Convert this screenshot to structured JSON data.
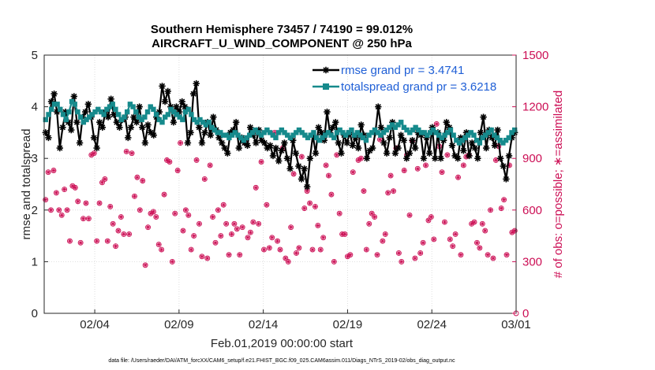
{
  "chart_data": {
    "type": "line",
    "title": "Southern Hemisphere 73457 / 74190 = 99.012%",
    "subtitle": "AIRCRAFT_U_WIND_COMPONENT @ 250 hPa",
    "xlabel": "Feb.01,2019 00:00:00 start",
    "ylabel": "rmse and totalspread",
    "y2label": "# of obs: o=possible; ∗=assimilated",
    "footer": "data file: /Users/raeder/DAI/ATM_forcXX/CAM6_setup/f.e21.FHIST_BGC.f09_025.CAM6assim.011/Diags_NTrS_2019-02/obs_diag_output.nc",
    "xlim": [
      1,
      29
    ],
    "ylim": [
      0,
      5
    ],
    "y2lim": [
      0,
      1500
    ],
    "x_ticks": [
      {
        "value": 4,
        "label": "02/04"
      },
      {
        "value": 9,
        "label": "02/09"
      },
      {
        "value": 14,
        "label": "02/14"
      },
      {
        "value": 19,
        "label": "02/19"
      },
      {
        "value": 24,
        "label": "02/24"
      },
      {
        "value": 29,
        "label": "03/01"
      }
    ],
    "y_ticks": [
      "0",
      "1",
      "2",
      "3",
      "4",
      "5"
    ],
    "y2_ticks": [
      "0",
      "300",
      "600",
      "900",
      "1200",
      "1500"
    ],
    "colors": {
      "rmse": "#000000",
      "totalspread": "#168a8c",
      "obs": "#cc0f55",
      "legend_text": "#1f5fd6",
      "right_axis": "#cc0f55"
    },
    "legend_position": "top-right",
    "series": [
      {
        "name": "rmse",
        "legend": "rmse grand pr = 3.4741",
        "values": [
          3.5,
          3.4,
          4.1,
          4.25,
          3.9,
          3.2,
          3.6,
          3.9,
          3.7,
          3.55,
          4.2,
          3.7,
          3.3,
          3.8,
          3.9,
          4.05,
          3.8,
          3.4,
          3.2,
          3.7,
          3.6,
          3.9,
          3.8,
          4.15,
          3.85,
          3.7,
          3.6,
          3.75,
          3.8,
          3.4,
          3.6,
          3.8,
          3.7,
          4.0,
          3.6,
          3.3,
          3.65,
          3.5,
          3.45,
          3.8,
          3.9,
          4.4,
          4.1,
          4.3,
          4.0,
          3.7,
          4.0,
          3.9,
          4.1,
          4.0,
          3.3,
          3.5,
          4.25,
          4.45,
          3.6,
          3.3,
          3.5,
          3.7,
          3.45,
          3.8,
          3.55,
          3.4,
          3.3,
          3.2,
          3.1,
          3.5,
          3.55,
          3.7,
          3.2,
          3.4,
          3.3,
          3.25,
          3.6,
          3.45,
          3.3,
          3.55,
          3.35,
          3.3,
          3.2,
          3.25,
          3.05,
          3.2,
          2.95,
          3.15,
          3.3,
          3.0,
          2.8,
          3.35,
          3.1,
          2.85,
          2.6,
          2.8,
          2.45,
          3.0,
          3.45,
          3.1,
          3.6,
          3.5,
          3.35,
          3.9,
          3.5,
          3.6,
          3.7,
          3.3,
          3.1,
          3.45,
          3.3,
          3.5,
          3.25,
          3.4,
          3.2,
          3.65,
          3.45,
          3.0,
          3.15,
          3.2,
          3.5,
          4.0,
          3.6,
          3.3,
          3.1,
          3.4,
          3.7,
          3.1,
          3.2,
          3.45,
          3.35,
          3.0,
          3.1,
          3.35,
          3.2,
          3.5,
          3.45,
          3.0,
          3.4,
          3.1,
          3.6,
          3.0,
          3.5,
          3.0,
          3.35,
          3.7,
          3.6,
          3.25,
          3.05,
          3.0,
          3.4,
          3.15,
          3.5,
          3.05,
          3.3,
          3.2,
          3.0,
          3.5,
          3.8,
          3.2,
          3.55,
          3.4,
          3.25,
          3.55,
          3.0,
          2.85,
          2.6,
          3.05,
          3.4,
          3.5
        ]
      },
      {
        "name": "totalspread",
        "legend": "totalspread grand pr = 3.6218",
        "values": [
          3.75,
          3.85,
          3.95,
          4.05,
          4.05,
          3.95,
          3.85,
          3.75,
          3.9,
          4.1,
          4.05,
          3.9,
          3.8,
          3.7,
          3.75,
          3.8,
          3.85,
          3.9,
          3.95,
          3.9,
          3.85,
          3.95,
          4.0,
          4.05,
          3.95,
          3.85,
          3.75,
          3.8,
          3.9,
          4.05,
          4.0,
          3.9,
          3.8,
          3.75,
          3.8,
          3.9,
          4.0,
          3.95,
          3.85,
          3.75,
          3.7,
          3.8,
          3.85,
          3.95,
          3.9,
          3.85,
          3.8,
          3.75,
          3.9,
          3.95,
          3.85,
          3.75,
          3.7,
          3.75,
          3.7,
          3.65,
          3.7,
          3.6,
          3.55,
          3.5,
          3.5,
          3.45,
          3.45,
          3.4,
          3.45,
          3.5,
          3.45,
          3.4,
          3.35,
          3.4,
          3.45,
          3.5,
          3.55,
          3.5,
          3.45,
          3.5,
          3.55,
          3.5,
          3.45,
          3.4,
          3.5,
          3.55,
          3.5,
          3.45,
          3.4,
          3.45,
          3.5,
          3.55,
          3.5,
          3.45,
          3.4,
          3.45,
          3.5,
          3.4,
          3.35,
          3.4,
          3.45,
          3.5,
          3.45,
          3.4,
          3.5,
          3.55,
          3.5,
          3.45,
          3.5,
          3.55,
          3.45,
          3.5,
          3.45,
          3.4,
          3.35,
          3.45,
          3.5,
          3.55,
          3.5,
          3.45,
          3.5,
          3.55,
          3.6,
          3.65,
          3.6,
          3.65,
          3.7,
          3.6,
          3.55,
          3.5,
          3.55,
          3.6,
          3.55,
          3.5,
          3.5,
          3.45,
          3.5,
          3.55,
          3.5,
          3.45,
          3.4,
          3.45,
          3.5,
          3.55,
          3.45,
          3.35,
          3.3,
          3.35,
          3.4,
          3.45,
          3.5,
          3.45,
          3.35,
          3.3,
          3.4,
          3.45,
          3.5,
          3.55,
          3.45,
          3.4,
          3.35,
          3.3,
          3.35,
          3.4,
          3.5,
          3.55
        ]
      }
    ],
    "obs_counts": {
      "possible": [
        660,
        820,
        600,
        830,
        700,
        600,
        570,
        720,
        600,
        420,
        740,
        730,
        650,
        410,
        550,
        640,
        550,
        920,
        930,
        420,
        640,
        760,
        780,
        420,
        620,
        520,
        390,
        480,
        560,
        460,
        940,
        460,
        930,
        680,
        790,
        600,
        770,
        280,
        500,
        580,
        590,
        560,
        400,
        370,
        690,
        890,
        880,
        300,
        580,
        830,
        990,
        480,
        600,
        570,
        370,
        450,
        890,
        520,
        330,
        780,
        320,
        860,
        560,
        410,
        600,
        450,
        630,
        520,
        340,
        460,
        520,
        490,
        340,
        500,
        990,
        440,
        470,
        530,
        730,
        520,
        880,
        370,
        630,
        380,
        440,
        1050,
        420,
        370,
        960,
        320,
        300,
        500,
        810,
        350,
        380,
        910,
        610,
        710,
        640,
        370,
        620,
        510,
        370,
        440,
        860,
        800,
        690,
        300,
        920,
        580,
        460,
        460,
        330,
        340,
        820,
        1030,
        890,
        900,
        710,
        370,
        520,
        580,
        560,
        340,
        1010,
        420,
        460,
        700,
        800,
        710,
        960,
        350,
        300,
        830,
        920,
        570,
        1000,
        320,
        840,
        350,
        410,
        860,
        540,
        560,
        430,
        1100,
        970,
        820,
        530,
        920,
        430,
        390,
        460,
        790,
        340,
        860,
        910,
        920,
        520,
        530,
        410,
        380,
        520,
        480,
        340,
        600,
        320,
        890,
        970,
        610,
        660,
        340,
        860,
        470,
        480
      ]
    },
    "obs_assimilated": [
      660,
      820,
      600,
      830,
      700,
      600,
      570,
      720,
      600,
      420,
      740,
      730,
      650,
      410,
      550,
      640,
      550,
      920,
      930,
      420,
      640,
      760,
      780,
      420,
      620,
      520,
      390,
      480,
      560,
      460,
      940,
      460,
      930,
      680,
      790,
      600,
      770,
      280,
      500,
      580,
      590,
      560,
      400,
      370,
      690,
      890,
      880,
      300,
      580,
      830,
      990,
      480,
      600,
      570,
      370,
      450,
      890,
      520,
      330,
      780,
      320,
      860,
      560,
      410,
      600,
      450,
      630,
      520,
      340,
      460,
      520,
      490,
      340,
      500,
      990,
      440,
      470,
      530,
      730,
      520,
      880,
      370,
      630,
      380,
      440,
      1050,
      420,
      370,
      960,
      320,
      300,
      500,
      810,
      350,
      380,
      910,
      610,
      710,
      640,
      370,
      620,
      510,
      370,
      440,
      860,
      800,
      690,
      300,
      920,
      580,
      460,
      460,
      330,
      340,
      820,
      1030,
      890,
      900,
      710,
      370,
      520,
      580,
      560,
      340,
      1010,
      420,
      460,
      700,
      800,
      710,
      960,
      350,
      300,
      830,
      920,
      570,
      1000,
      320,
      840,
      350,
      410,
      860,
      540,
      560,
      430,
      1100,
      970,
      820,
      530,
      920,
      430,
      390,
      460,
      790,
      340,
      860,
      910,
      920,
      520,
      530,
      410,
      380,
      520,
      480,
      340,
      600,
      320,
      890,
      970,
      610,
      660,
      340,
      860,
      470,
      480
    ]
  }
}
